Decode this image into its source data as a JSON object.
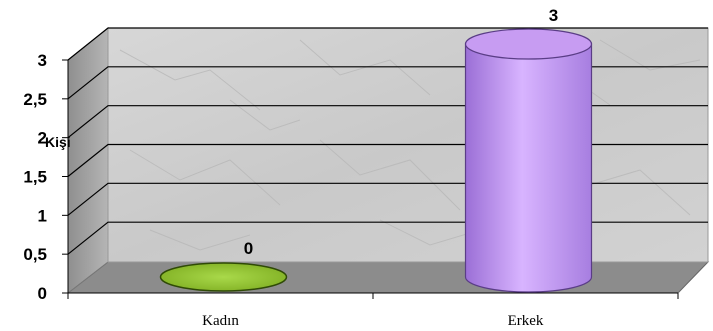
{
  "chart_data": {
    "type": "bar",
    "style": "3d-cylinder",
    "categories": [
      "Kadın",
      "Erkek"
    ],
    "values": [
      0,
      3
    ],
    "value_labels": [
      "0",
      "3"
    ],
    "ylabel": "Kişi",
    "ylim": [
      0,
      3
    ],
    "yticks": [
      "0",
      "0,5",
      "1",
      "1,5",
      "2",
      "2,5",
      "3"
    ],
    "ytick_values": [
      0,
      0.5,
      1,
      1.5,
      2,
      2.5,
      3
    ],
    "grid": true,
    "wall": "gray marble texture",
    "bar_colors": [
      "#9acd32",
      "#c79cf2"
    ]
  }
}
